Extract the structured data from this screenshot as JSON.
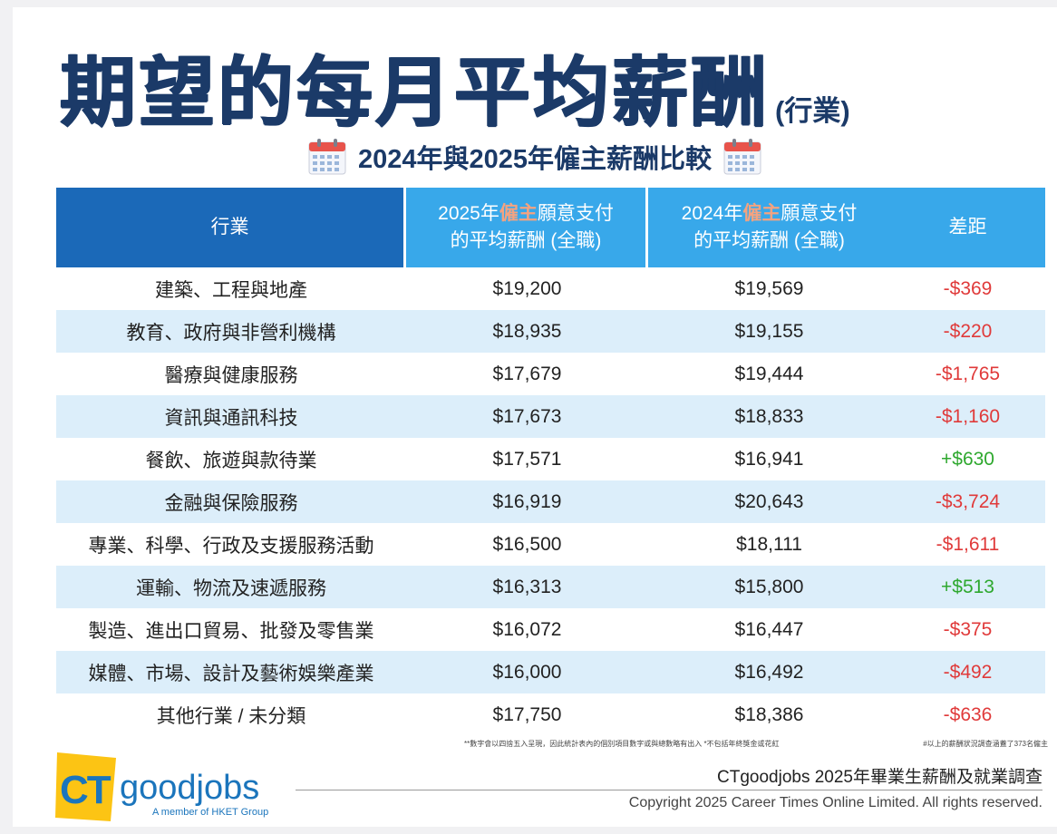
{
  "title": {
    "main": "期望的每月平均薪酬",
    "suffix": "(行業)"
  },
  "subtitle": "2024年與2025年僱主薪酬比較",
  "table": {
    "headers": {
      "industry": "行業",
      "y2025_pre": "2025年",
      "y2025_hl": "僱主",
      "y2025_post": "願意支付",
      "y2025_line2": "的平均薪酬 (全職)",
      "y2024_pre": "2024年",
      "y2024_hl": "僱主",
      "y2024_post": "願意支付",
      "y2024_line2": "的平均薪酬 (全職)",
      "diff": "差距"
    },
    "rows": [
      {
        "industry": "建築、工程與地產",
        "y2025": "$19,200",
        "y2024": "$19,569",
        "diff": "-$369"
      },
      {
        "industry": "教育、政府與非營利機構",
        "y2025": "$18,935",
        "y2024": "$19,155",
        "diff": "-$220"
      },
      {
        "industry": "醫療與健康服務",
        "y2025": "$17,679",
        "y2024": "$19,444",
        "diff": "-$1,765"
      },
      {
        "industry": "資訊與通訊科技",
        "y2025": "$17,673",
        "y2024": "$18,833",
        "diff": "-$1,160"
      },
      {
        "industry": "餐飲、旅遊與款待業",
        "y2025": "$17,571",
        "y2024": "$16,941",
        "diff": "+$630"
      },
      {
        "industry": "金融與保險服務",
        "y2025": "$16,919",
        "y2024": "$20,643",
        "diff": "-$3,724"
      },
      {
        "industry": "專業、科學、行政及支援服務活動",
        "y2025": "$16,500",
        "y2024": "$18,111",
        "diff": "-$1,611"
      },
      {
        "industry": "運輸、物流及速遞服務",
        "y2025": "$16,313",
        "y2024": "$15,800",
        "diff": "+$513"
      },
      {
        "industry": "製造、進出口貿易、批發及零售業",
        "y2025": "$16,072",
        "y2024": "$16,447",
        "diff": "-$375"
      },
      {
        "industry": "媒體、市場、設計及藝術娛樂產業",
        "y2025": "$16,000",
        "y2024": "$16,492",
        "diff": "-$492"
      },
      {
        "industry": "其他行業 / 未分類",
        "y2025": "$17,750",
        "y2024": "$18,386",
        "diff": "-$636"
      }
    ]
  },
  "notes": {
    "left": "**數字會以四捨五入呈現，因此統計表內的個別項目數字或與總數略有出入  *不包括年終獎金或花紅",
    "right": "#以上的薪酬狀況調查涵蓋了373名僱主"
  },
  "footer": {
    "logo": {
      "ct": "CT",
      "goodjobs": "goodjobs",
      "tagline": "A member of HKET Group"
    },
    "survey": "CTgoodjobs 2025年畢業生薪酬及就業調查",
    "copyright": "Copyright 2025 Career Times Online Limited. All rights reserved."
  },
  "colors": {
    "title": "#1b3a68",
    "header_dark": "#1b69b8",
    "header_light": "#38a8ea",
    "row_stripe": "#dceefa",
    "negative": "#e03a3a",
    "positive": "#2ea82e",
    "highlight": "#f4a380",
    "logo_yellow": "#fcc414",
    "logo_blue": "#1b75bc"
  },
  "icons": [
    "calendar-icon",
    "calendar-icon"
  ]
}
